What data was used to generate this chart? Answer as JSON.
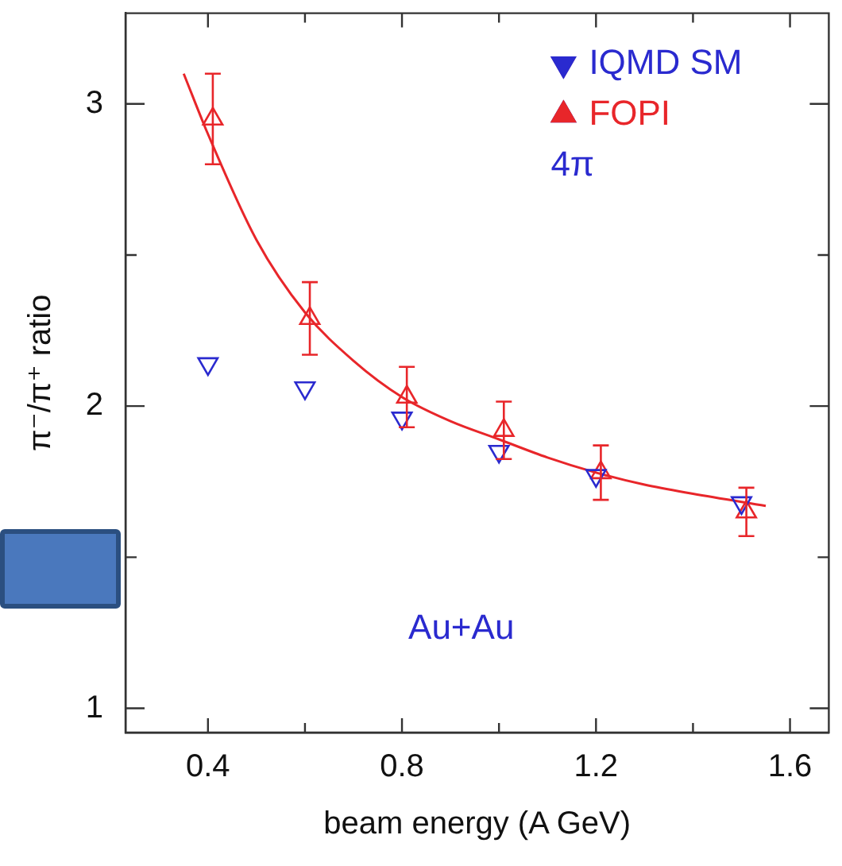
{
  "chart_data": {
    "type": "scatter",
    "xlabel": "beam energy (A GeV)",
    "ylabel": "π⁻/π⁺ ratio",
    "xlim": [
      0.23,
      1.68
    ],
    "xticks": [
      0.4,
      {
        "value": 0.6,
        "label": null
      },
      0.8,
      {
        "value": 1.0,
        "label": null
      },
      1.2,
      {
        "value": 1.4,
        "label": null
      },
      1.6
    ],
    "ylim": [
      0.92,
      3.3
    ],
    "yticks": [
      1,
      {
        "value": 1.5,
        "label": null
      },
      2,
      {
        "value": 2.5,
        "label": null
      },
      3
    ],
    "grid": false,
    "legend": "top right",
    "marker": "triangle",
    "series": [
      {
        "name": "IQMD SM",
        "color": "#2a2acf",
        "x": [
          0.4,
          0.6,
          0.8,
          1.0,
          1.2,
          1.5
        ],
        "values": [
          2.14,
          2.06,
          1.96,
          1.85,
          1.77,
          1.68
        ]
      },
      {
        "name": "FOPI",
        "color": "#e8262a",
        "x": [
          0.41,
          0.61,
          0.81,
          1.01,
          1.21,
          1.51
        ],
        "values": [
          2.95,
          2.29,
          2.03,
          1.92,
          1.78,
          1.65
        ],
        "errors": [
          0.15,
          0.12,
          0.1,
          0.095,
          0.09,
          0.08
        ]
      },
      {
        "type": "line",
        "color": "#e8262a",
        "marker": "none",
        "x": [
          0.35,
          0.4,
          0.5,
          0.6,
          0.7,
          0.8,
          0.9,
          1.0,
          1.1,
          1.2,
          1.3,
          1.4,
          1.55
        ],
        "values": [
          3.1,
          2.9,
          2.55,
          2.31,
          2.15,
          2.03,
          1.95,
          1.89,
          1.83,
          1.78,
          1.74,
          1.71,
          1.67
        ]
      }
    ],
    "annotations": [
      "4π",
      "Au+Au"
    ]
  }
}
